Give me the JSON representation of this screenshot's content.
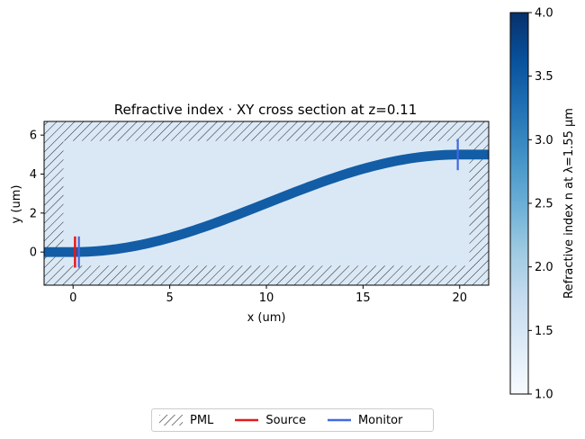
{
  "chart_data": {
    "type": "heatmap",
    "title": "Refractive index · XY cross section at z=0.11",
    "xlabel": "x (um)",
    "ylabel": "y (um)",
    "xlim": [
      -1.5,
      21.5
    ],
    "ylim": [
      -1.7,
      6.7
    ],
    "xticks": [
      0,
      5,
      10,
      15,
      20
    ],
    "yticks": [
      0,
      2,
      4,
      6
    ],
    "pml_inner_x": [
      -0.5,
      20.5
    ],
    "pml_inner_y": [
      -0.7,
      5.7
    ],
    "background_index": 1.44,
    "waveguide": {
      "shape": "s-bend",
      "x_start": 0,
      "x_end": 20,
      "y_start": 0,
      "y_end": 5,
      "width": 0.5,
      "index": 3.48
    },
    "source": {
      "x": 0.1,
      "y_range": [
        -0.8,
        0.8
      ],
      "color": "#e31a1c"
    },
    "monitors": [
      {
        "x": 0.3,
        "y_range": [
          -0.8,
          0.8
        ],
        "color": "#4169e1"
      },
      {
        "x": 19.9,
        "y_range": [
          4.2,
          5.8
        ],
        "color": "#4169e1"
      }
    ],
    "colorbar": {
      "label": "Refractive index n at λ=1.55 μm",
      "range": [
        1.0,
        4.0
      ],
      "ticks": [
        "1.0",
        "1.5",
        "2.0",
        "2.5",
        "3.0",
        "3.5",
        "4.0"
      ],
      "colormap": "Blues"
    },
    "legend": {
      "placement": "bottom-center",
      "entries": [
        {
          "label": "PML",
          "style": "hatch"
        },
        {
          "label": "Source",
          "color": "#e31a1c"
        },
        {
          "label": "Monitor",
          "color": "#4169e1"
        }
      ]
    }
  }
}
